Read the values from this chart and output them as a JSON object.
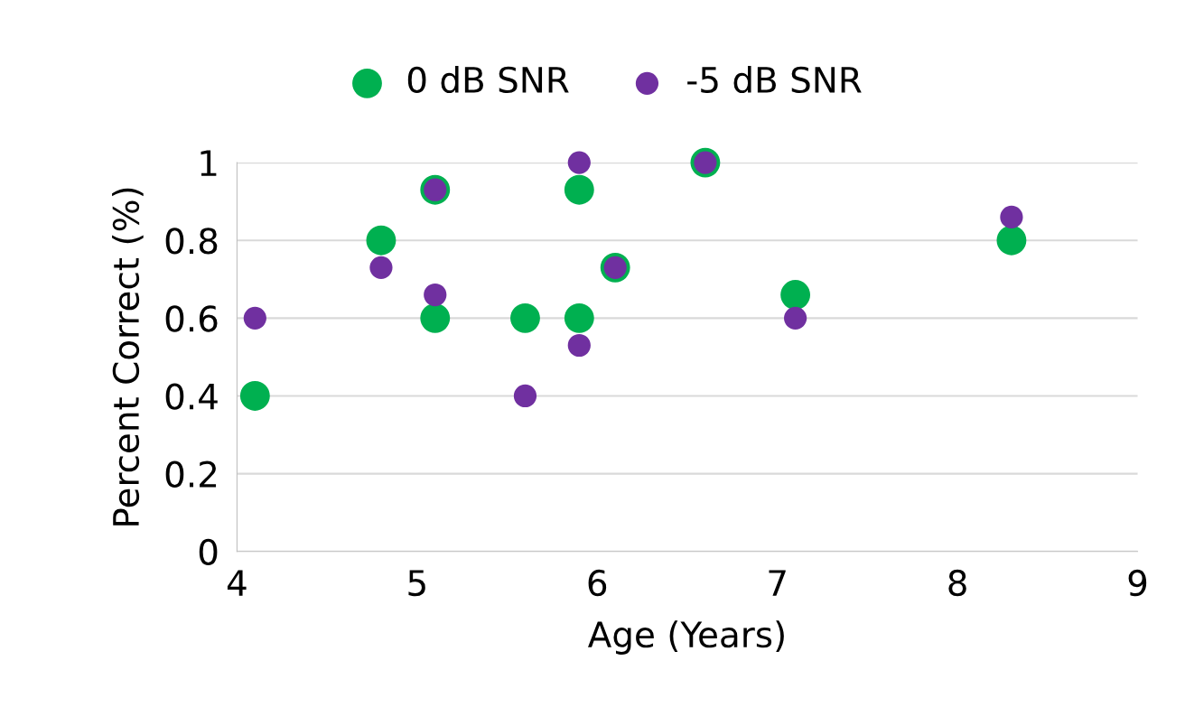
{
  "chart_data": {
    "type": "scatter",
    "xlabel": "Age (Years)",
    "ylabel": "Percent Correct (%)",
    "series": [
      {
        "name": "0 dB SNR",
        "color": "#00b050",
        "x": [
          4.1,
          4.8,
          5.1,
          5.1,
          5.6,
          5.9,
          5.9,
          6.1,
          6.6,
          7.1,
          8.3
        ],
        "values": [
          0.4,
          0.8,
          0.93,
          0.6,
          0.6,
          0.93,
          0.6,
          0.73,
          1.0,
          0.66,
          0.8
        ]
      },
      {
        "name": "-5 dB SNR",
        "color": "#7030a0",
        "x": [
          4.1,
          4.8,
          5.1,
          5.1,
          5.6,
          5.9,
          5.9,
          6.1,
          6.6,
          7.1,
          8.3
        ],
        "values": [
          0.6,
          0.73,
          0.93,
          0.66,
          0.4,
          1.0,
          0.53,
          0.73,
          1.0,
          0.6,
          0.86
        ]
      }
    ],
    "xlim": [
      4,
      9
    ],
    "xticks": [
      4,
      5,
      6,
      7,
      8,
      9
    ],
    "ylim": [
      0,
      1
    ],
    "yticks": [
      0,
      0.2,
      0.4,
      0.6,
      0.8,
      1
    ],
    "grid": "y",
    "legend": "top",
    "marker": "circle"
  }
}
